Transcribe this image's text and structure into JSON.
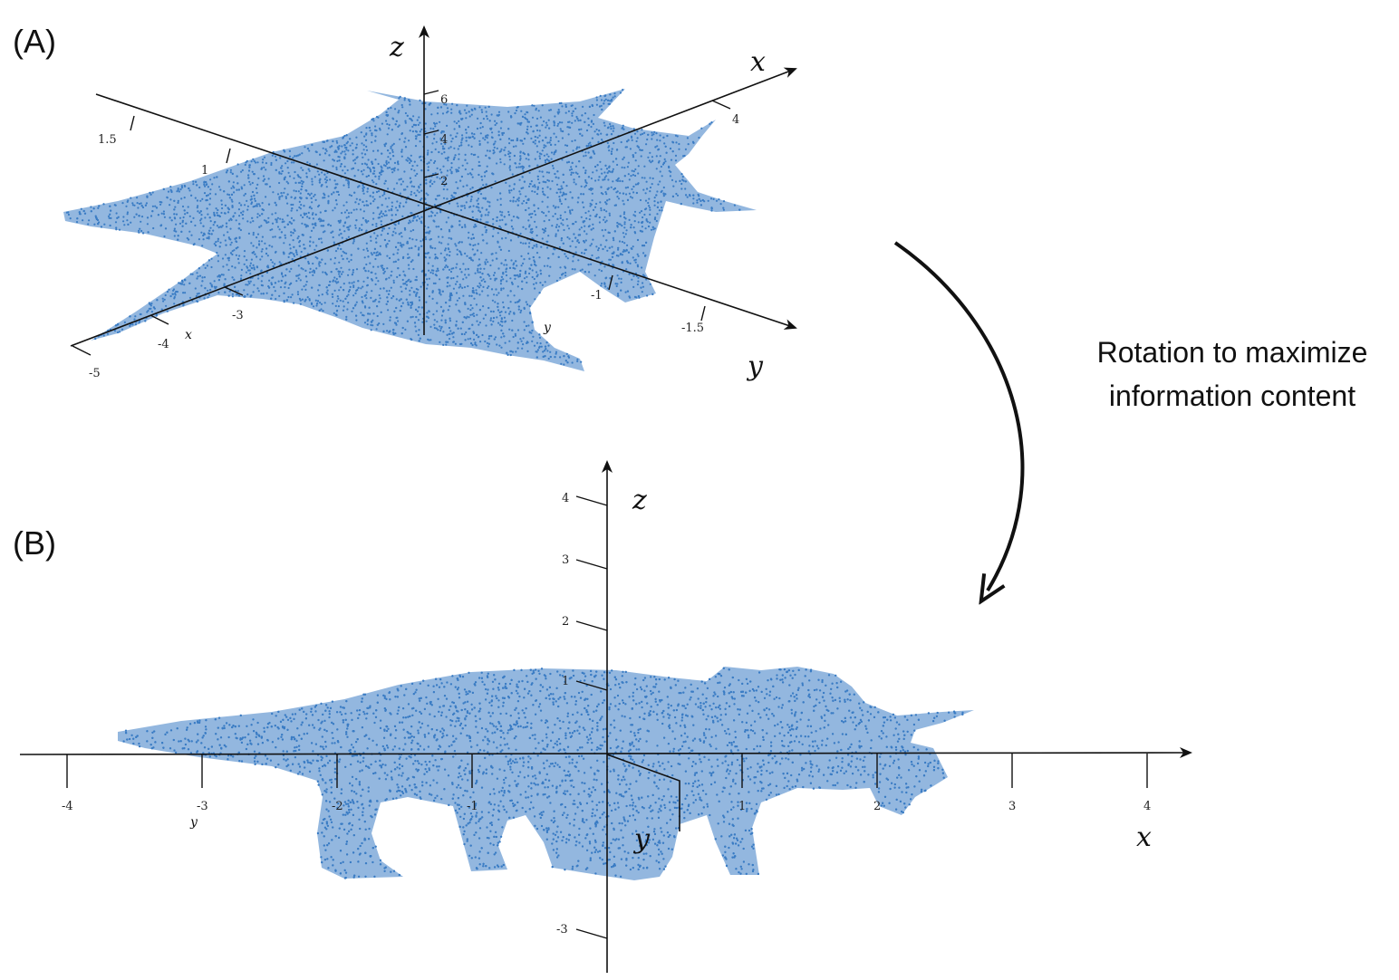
{
  "panels": {
    "a": {
      "label": "(A)",
      "axis_x": "x",
      "axis_y": "y",
      "axis_z": "z",
      "small_x": "x",
      "small_y": "y",
      "ticks_z": [
        "2",
        "4",
        "6"
      ],
      "ticks_x": [
        "4",
        "-3",
        "-4",
        "-5"
      ],
      "ticks_y": [
        "1.5",
        "1",
        "-1",
        "-1.5"
      ]
    },
    "b": {
      "label": "(B)",
      "axis_x": "x",
      "axis_y": "y",
      "axis_z": "z",
      "small_y": "y",
      "ticks_x": [
        "-4",
        "-3",
        "-2",
        "-1",
        "1",
        "2",
        "3",
        "4"
      ],
      "ticks_z": [
        "4",
        "3",
        "2",
        "1",
        "-3"
      ]
    }
  },
  "caption": {
    "line1": "Rotation to maximize",
    "line2": "information content"
  },
  "colors": {
    "points": "#3a7cc4",
    "axis": "#111111"
  }
}
